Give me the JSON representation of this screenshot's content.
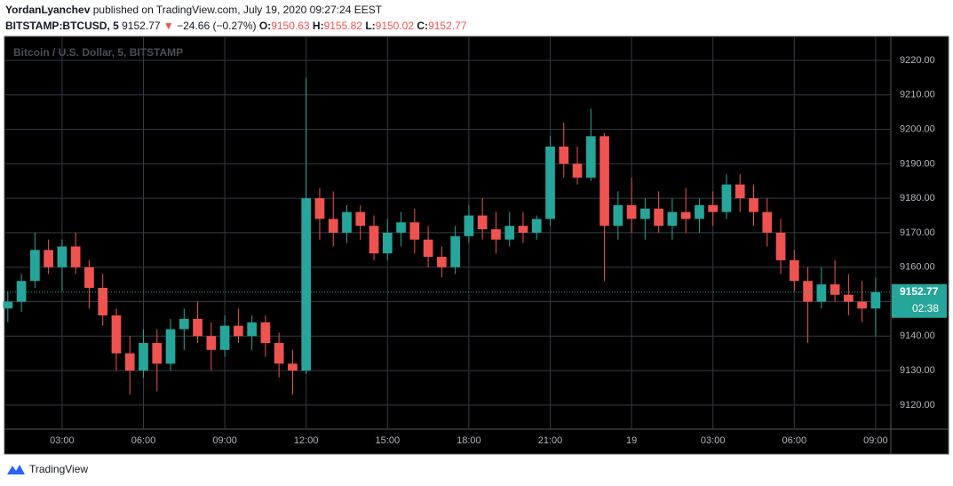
{
  "header": {
    "author": "YordanLyanchev",
    "published": "published on TradingView.com, July 19, 2020 09:27:24 EEST"
  },
  "legend": {
    "symbol": "BITSTAMP:BTCUSD, 5",
    "price": "9152.77",
    "arrow": "▼",
    "change": "−24.66 (−0.27%)",
    "o_label": "O:",
    "o": "9150.63",
    "h_label": "H:",
    "h": "9155.82",
    "l_label": "L:",
    "l": "9150.02",
    "c_label": "C:",
    "c": "9152.77"
  },
  "chart_data": {
    "type": "candlestick",
    "watermark": "Bitcoin / U.S. Dollar, 5, BITSTAMP",
    "up_color": "#26a69a",
    "down_color": "#ef5350",
    "grid": true,
    "x": [
      1.0,
      1.5,
      2.0,
      2.5,
      3.0,
      3.5,
      4.0,
      4.5,
      5.0,
      5.5,
      6.0,
      6.5,
      7.0,
      7.5,
      8.0,
      8.5,
      9.0,
      9.5,
      10.0,
      10.5,
      11.0,
      11.5,
      12.0,
      12.5,
      13.0,
      13.5,
      14.0,
      14.5,
      15.0,
      15.5,
      16.0,
      16.5,
      17.0,
      17.5,
      18.0,
      18.5,
      19.0,
      19.5,
      20.0,
      20.5,
      21.0,
      21.5,
      22.0,
      22.5,
      23.0,
      23.5,
      24.0,
      24.5,
      25.0,
      25.5,
      26.0,
      26.5,
      27.0,
      27.5,
      28.0,
      28.5,
      29.0,
      29.5,
      30.0,
      30.5,
      31.0,
      31.5,
      32.0,
      32.5,
      33.0
    ],
    "open": [
      9148,
      9150,
      9156,
      9165,
      9160,
      9166,
      9160,
      9154,
      9146,
      9135,
      9130,
      9138,
      9132,
      9142,
      9145,
      9140,
      9136,
      9143,
      9140,
      9144,
      9138,
      9132,
      9130,
      9180,
      9174,
      9170,
      9176,
      9172,
      9164,
      9170,
      9173,
      9168,
      9163,
      9160,
      9169,
      9175,
      9171,
      9168,
      9172,
      9170,
      9174,
      9195,
      9190,
      9186,
      9198,
      9172,
      9178,
      9174,
      9177,
      9172,
      9176,
      9174,
      9178,
      9176,
      9184,
      9180,
      9176,
      9170,
      9162,
      9156,
      9150,
      9155,
      9152,
      9150,
      9148
    ],
    "high": [
      9153,
      9158,
      9170,
      9168,
      9168,
      9170,
      9162,
      9158,
      9148,
      9140,
      9142,
      9142,
      9145,
      9148,
      9150,
      9144,
      9146,
      9148,
      9146,
      9146,
      9141,
      9136,
      9215,
      9183,
      9182,
      9178,
      9178,
      9175,
      9174,
      9176,
      9177,
      9172,
      9166,
      9172,
      9178,
      9180,
      9176,
      9176,
      9176,
      9175,
      9198,
      9202,
      9195,
      9206,
      9199,
      9182,
      9186,
      9180,
      9182,
      9180,
      9183,
      9180,
      9182,
      9187,
      9187,
      9184,
      9180,
      9174,
      9165,
      9160,
      9160,
      9162,
      9158,
      9156,
      9157
    ],
    "low": [
      9144,
      9147,
      9154,
      9158,
      9153,
      9158,
      9148,
      9143,
      9130,
      9123,
      9128,
      9124,
      9130,
      9136,
      9138,
      9130,
      9134,
      9138,
      9136,
      9134,
      9128,
      9123,
      9129,
      9168,
      9166,
      9167,
      9168,
      9162,
      9162,
      9166,
      9164,
      9160,
      9157,
      9158,
      9167,
      9168,
      9164,
      9166,
      9167,
      9168,
      9172,
      9186,
      9184,
      9185,
      9156,
      9168,
      9170,
      9168,
      9170,
      9168,
      9170,
      9170,
      9172,
      9174,
      9176,
      9172,
      9166,
      9158,
      9153,
      9138,
      9148,
      9150,
      9146,
      9144,
      9140
    ],
    "close": [
      9150,
      9156,
      9165,
      9160,
      9166,
      9160,
      9154,
      9146,
      9135,
      9130,
      9138,
      9132,
      9142,
      9145,
      9140,
      9136,
      9143,
      9140,
      9144,
      9138,
      9132,
      9130,
      9180,
      9174,
      9170,
      9176,
      9172,
      9164,
      9170,
      9173,
      9168,
      9163,
      9160,
      9169,
      9175,
      9171,
      9168,
      9172,
      9170,
      9174,
      9195,
      9190,
      9186,
      9198,
      9172,
      9178,
      9174,
      9177,
      9172,
      9176,
      9174,
      9178,
      9176,
      9184,
      9180,
      9176,
      9170,
      9162,
      9156,
      9150,
      9155,
      9152,
      9150,
      9148,
      9152.77
    ],
    "xlim": [
      0.94,
      33.56
    ],
    "xticks": [
      {
        "value": 3,
        "label": "03:00"
      },
      {
        "value": 6,
        "label": "06:00"
      },
      {
        "value": 9,
        "label": "09:00"
      },
      {
        "value": 12,
        "label": "12:00"
      },
      {
        "value": 15,
        "label": "15:00"
      },
      {
        "value": 18,
        "label": "18:00"
      },
      {
        "value": 21,
        "label": "21:00"
      },
      {
        "value": 24,
        "label": "19"
      },
      {
        "value": 27,
        "label": "03:00"
      },
      {
        "value": 30,
        "label": "06:00"
      },
      {
        "value": 33,
        "label": "09:00"
      }
    ],
    "ylim": [
      9113,
      9224.9
    ],
    "yticks": [
      {
        "value": 9120,
        "label": "9120.00"
      },
      {
        "value": 9130,
        "label": "9130.00"
      },
      {
        "value": 9140,
        "label": "9140.00"
      },
      {
        "value": 9150,
        "label": "9150.00"
      },
      {
        "value": 9160,
        "label": "9160.00"
      },
      {
        "value": 9170,
        "label": "9170.00"
      },
      {
        "value": 9180,
        "label": "9180.00"
      },
      {
        "value": 9190,
        "label": "9190.00"
      },
      {
        "value": 9200,
        "label": "9200.00"
      },
      {
        "value": 9210,
        "label": "9210.00"
      },
      {
        "value": 9220,
        "label": "9220.00"
      }
    ],
    "last_price": 9152.77,
    "countdown": "02:38"
  },
  "footer": {
    "brand": "TradingView"
  }
}
